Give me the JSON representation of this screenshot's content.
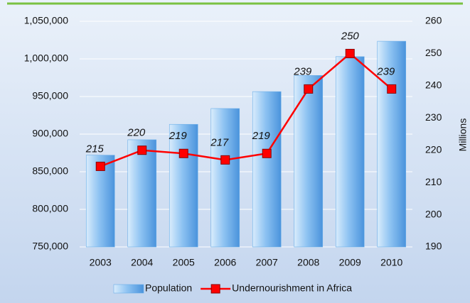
{
  "chart_data": {
    "type": "bar",
    "categories": [
      "2003",
      "2004",
      "2005",
      "2006",
      "2007",
      "2008",
      "2009",
      "2010"
    ],
    "series": [
      {
        "name": "Population",
        "type": "bar",
        "color": "#6aaee8",
        "values": [
          872000,
          892500,
          913000,
          934000,
          956500,
          978000,
          1003000,
          1023500
        ]
      },
      {
        "name": "Undernourishment in Africa",
        "type": "line",
        "axis": "y2",
        "color": "#ff0000",
        "values": [
          215,
          220,
          219,
          217,
          219,
          239,
          250,
          239
        ]
      }
    ],
    "ylim": [
      750000,
      1050000
    ],
    "yticks": [
      {
        "value": 750000,
        "label": "750,000"
      },
      {
        "value": 800000,
        "label": "800,000"
      },
      {
        "value": 850000,
        "label": "850,000"
      },
      {
        "value": 900000,
        "label": "900,000"
      },
      {
        "value": 950000,
        "label": "950,000"
      },
      {
        "value": 1000000,
        "label": "1,000,000"
      },
      {
        "value": 1050000,
        "label": "1,050,000"
      }
    ],
    "y2lim": [
      190,
      260
    ],
    "y2ticks": [
      190,
      200,
      210,
      220,
      230,
      240,
      250,
      260
    ],
    "y2label": "Millions",
    "grid": true,
    "legend": "bottom"
  }
}
